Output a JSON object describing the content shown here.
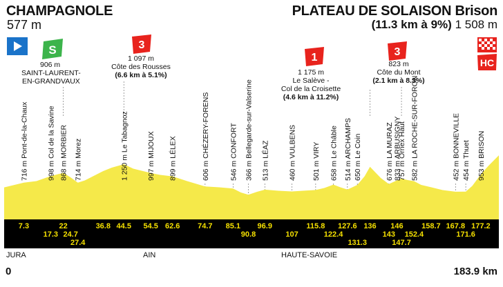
{
  "start": {
    "name": "CHAMPAGNOLE",
    "altitude": "577 m"
  },
  "finish": {
    "name": "PLATEAU DE SOLAISON Brison",
    "climb": "(11.3 km à 9%)",
    "altitude": "1 508 m"
  },
  "start_km": "0",
  "total_km": "183.9 km",
  "regions": [
    "JURA",
    "AIN",
    "HAUTE-SAVOIE"
  ],
  "colors": {
    "profile": "#f5e94a",
    "baseline": "#000000",
    "km_text": "#f5e000",
    "sprint": "#3cb44b",
    "climb": "#e8231d",
    "start": "#1a73c9"
  },
  "icons": {
    "start": "start-flag-icon",
    "sprint": "sprint-icon",
    "cat3": "category-3-climb-icon",
    "cat1": "category-1-climb-icon",
    "hc": "hors-categorie-climb-icon",
    "finish": "checkered-flag-icon"
  },
  "badges": {
    "sprint": "S",
    "cat3a": "3",
    "cat1": "1",
    "cat3b": "3",
    "hc": "HC"
  },
  "sprint_label": {
    "alt": "906 m",
    "place_line1": "SAINT-LAURENT-",
    "place_line2": "EN-GRANDVAUX"
  },
  "climb_rousses": {
    "alt": "1 097 m",
    "name": "Côte des Rousses",
    "stats": "(6.6 km à 5.1%)"
  },
  "climb_saleve": {
    "alt": "1 175 m",
    "line1": "Le Salève -",
    "line2": "Col de la Croisette",
    "stats": "(4.6 km à 11.2%)"
  },
  "climb_mont": {
    "alt": "823 m",
    "name": "Côte du Mont",
    "stats": "(2.1 km à 8.3%)"
  },
  "places": [
    "716 m Pont-de-la-Chaux",
    "998 m Col de la Savine",
    "868 m MORBIER",
    "714 m Morez",
    "1 250 m Le Tabagnoz",
    "997 m MIJOUX",
    "899 m LÉLEX",
    "606 m CHÉZERY-FORENS",
    "546 m CONFORT",
    "366 m Bellegarde-sur-Valserine",
    "513 m LÉAZ",
    "460 m VULBENS",
    "501 m VIRY",
    "658 m Le Châble",
    "514 m ARCHAMPS",
    "650 m Le Coin",
    "676 m LA MURAZ",
    "833 m ARBUSIGNY",
    "757 m Ornex Haut",
    "582 m LA ROCHE-SUR-FORON",
    "452 m BONNEVILLE",
    "454 m Thuet",
    "953 m BRISON"
  ],
  "km_top": [
    "7.3",
    "22",
    "36.8",
    "44.5",
    "54.5",
    "62.6",
    "74.7",
    "85.1",
    "96.9",
    "115.8",
    "127.6",
    "136",
    "146",
    "158.7",
    "167.8",
    "177.2"
  ],
  "km_bottom": [
    "17.3",
    "24.7",
    "27.4",
    "90.8",
    "107",
    "122.4",
    "131.3",
    "143",
    "147.7",
    "152.4",
    "171.6"
  ],
  "elevation_profile": [
    [
      0,
      577
    ],
    [
      7.3,
      716
    ],
    [
      12,
      760
    ],
    [
      17.3,
      906
    ],
    [
      20,
      960
    ],
    [
      22,
      998
    ],
    [
      24.7,
      868
    ],
    [
      27.4,
      714
    ],
    [
      30,
      780
    ],
    [
      36.8,
      1050
    ],
    [
      40,
      1150
    ],
    [
      44.5,
      1250
    ],
    [
      48,
      1120
    ],
    [
      54.5,
      997
    ],
    [
      58,
      940
    ],
    [
      62.6,
      899
    ],
    [
      68,
      760
    ],
    [
      74.7,
      606
    ],
    [
      80,
      580
    ],
    [
      85.1,
      546
    ],
    [
      88,
      430
    ],
    [
      90.8,
      366
    ],
    [
      94,
      450
    ],
    [
      96.9,
      513
    ],
    [
      102,
      480
    ],
    [
      107,
      460
    ],
    [
      111,
      480
    ],
    [
      115.8,
      501
    ],
    [
      119,
      560
    ],
    [
      122.4,
      658
    ],
    [
      125,
      580
    ],
    [
      127.6,
      514
    ],
    [
      131.3,
      650
    ],
    [
      134,
      900
    ],
    [
      136,
      1175
    ],
    [
      140,
      850
    ],
    [
      143,
      676
    ],
    [
      146,
      780
    ],
    [
      147.7,
      833
    ],
    [
      150,
      790
    ],
    [
      152.4,
      757
    ],
    [
      155,
      650
    ],
    [
      158.7,
      582
    ],
    [
      163,
      500
    ],
    [
      167.8,
      452
    ],
    [
      171.6,
      454
    ],
    [
      174,
      620
    ],
    [
      177.2,
      953
    ],
    [
      180,
      1200
    ],
    [
      183.9,
      1508
    ]
  ]
}
